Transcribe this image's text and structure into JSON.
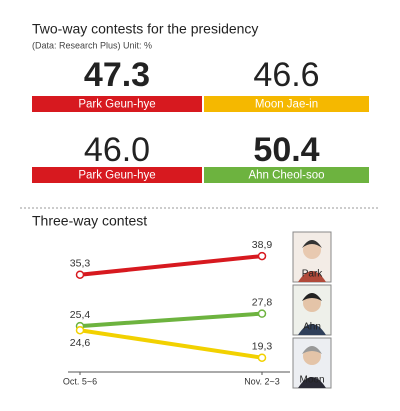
{
  "two_way": {
    "title": "Two-way contests for the presidency",
    "subtitle": "(Data: Research Plus) Unit: %",
    "contests": [
      {
        "candidates": [
          {
            "name": "Park Geun-hye",
            "value": 47.3,
            "value_label": "47.3",
            "color": "#d7191f"
          },
          {
            "name": "Moon Jae-in",
            "value": 46.6,
            "value_label": "46.6",
            "color": "#f5b800"
          }
        ]
      },
      {
        "candidates": [
          {
            "name": "Park Geun-hye",
            "value": 46.0,
            "value_label": "46.0",
            "color": "#d7191f"
          },
          {
            "name": "Ahn Cheol-soo",
            "value": 50.4,
            "value_label": "50.4",
            "color": "#6db33f"
          }
        ]
      }
    ]
  },
  "chart_data": {
    "type": "line",
    "title": "Three-way contest",
    "categories": [
      "Oct. 5~6",
      "Nov. 2~3"
    ],
    "ylim": [
      15,
      42
    ],
    "series": [
      {
        "name": "Park",
        "color": "#d7191f",
        "values": [
          35.3,
          38.9
        ],
        "value_labels": [
          "35,3",
          "38,9"
        ]
      },
      {
        "name": "Ahn",
        "color": "#6db33f",
        "values": [
          25.4,
          27.8
        ],
        "value_labels": [
          "25,4",
          "27,8"
        ]
      },
      {
        "name": "Moon",
        "color": "#f2d100",
        "values": [
          24.6,
          19.3
        ],
        "value_labels": [
          "24,6",
          "19,3"
        ]
      }
    ]
  }
}
